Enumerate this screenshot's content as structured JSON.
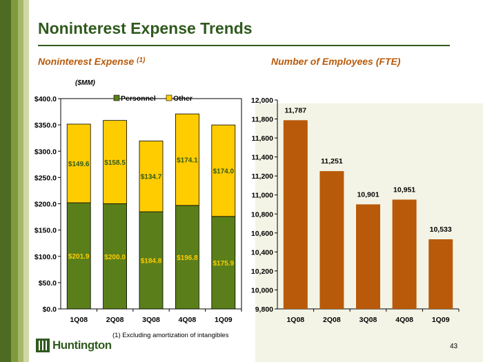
{
  "title": "Noninterest Expense Trends",
  "left_subtitle": {
    "text": "Noninterest Expense",
    "marker": "(1)"
  },
  "right_subtitle": "Number of Employees (FTE)",
  "units": "($MM)",
  "footnote": "(1)   Excluding amortization of intangibles",
  "page_number": "43",
  "logo_text": "Huntington",
  "colors": {
    "brand_green": "#2f5a1e",
    "personnel": "#5a7f1a",
    "other": "#ffcc00",
    "fte": "#b85a0a",
    "subtitle": "#b85a0a"
  },
  "chart_data": [
    {
      "type": "bar",
      "stacked": true,
      "categories": [
        "1Q08",
        "2Q08",
        "3Q08",
        "4Q08",
        "1Q09"
      ],
      "series": [
        {
          "name": "Personnel",
          "values": [
            201.9,
            200.0,
            184.8,
            196.8,
            175.9
          ],
          "labels": [
            "$201.9",
            "$200.0",
            "$184.8",
            "$196.8",
            "$175.9"
          ]
        },
        {
          "name": "Other",
          "values": [
            149.6,
            158.5,
            134.7,
            174.1,
            174.0
          ],
          "labels": [
            "$149.6",
            "$158.5",
            "$134.7",
            "$174.1",
            "$174.0"
          ]
        }
      ],
      "ylim": [
        0,
        400
      ],
      "yticks": [
        "$0.0",
        "$50.0",
        "$100.0",
        "$150.0",
        "$200.0",
        "$250.0",
        "$300.0",
        "$350.0",
        "$400.0"
      ],
      "legend": "top"
    },
    {
      "type": "bar",
      "categories": [
        "1Q08",
        "2Q08",
        "3Q08",
        "4Q08",
        "1Q09"
      ],
      "values": [
        11787,
        11251,
        10901,
        10951,
        10533
      ],
      "labels": [
        "11,787",
        "11,251",
        "10,901",
        "10,951",
        "10,533"
      ],
      "ylim": [
        9800,
        12000
      ],
      "yticks": [
        "9,800",
        "10,000",
        "10,200",
        "10,400",
        "10,600",
        "10,800",
        "11,000",
        "11,200",
        "11,400",
        "11,600",
        "11,800",
        "12,000"
      ]
    }
  ]
}
